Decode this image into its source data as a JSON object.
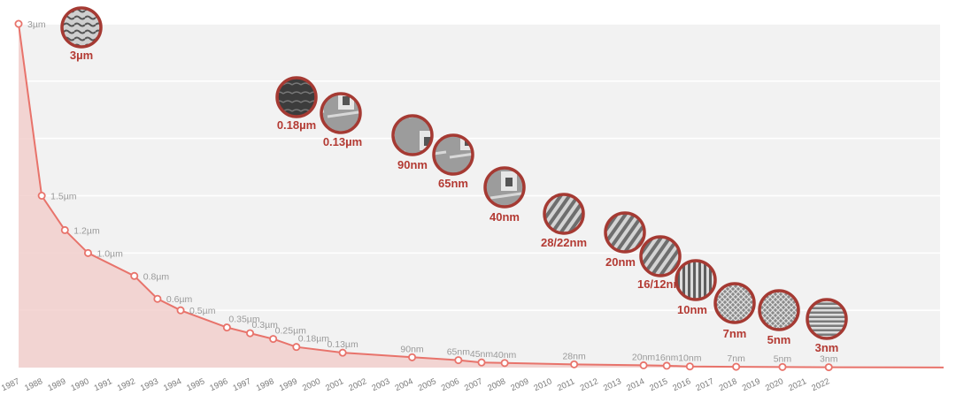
{
  "chart_data": {
    "type": "area",
    "x_tick_labels": [
      "1987",
      "1988",
      "1989",
      "1990",
      "1991",
      "1992",
      "1993",
      "1994",
      "1995",
      "1996",
      "1997",
      "1998",
      "1999",
      "2000",
      "2001",
      "2002",
      "2003",
      "2004",
      "2005",
      "2006",
      "2007",
      "2008",
      "2009",
      "2010",
      "2011",
      "2012",
      "2013",
      "2014",
      "2015",
      "2016",
      "2017",
      "2018",
      "2019",
      "2020",
      "2021",
      "2022"
    ],
    "unit": "nm",
    "ylim": [
      0,
      3000
    ],
    "grid": true,
    "points": [
      {
        "year": 1987,
        "value": 3000,
        "label": "3µm"
      },
      {
        "year": 1988,
        "value": 1500,
        "label": "1.5µm"
      },
      {
        "year": 1989,
        "value": 1200,
        "label": "1.2µm"
      },
      {
        "year": 1990,
        "value": 1000,
        "label": "1.0µm"
      },
      {
        "year": 1992,
        "value": 800,
        "label": "0.8µm"
      },
      {
        "year": 1993,
        "value": 600,
        "label": "0.6µm"
      },
      {
        "year": 1994,
        "value": 500,
        "label": "0.5µm"
      },
      {
        "year": 1996,
        "value": 350,
        "label": "0.35µm"
      },
      {
        "year": 1997,
        "value": 300,
        "label": "0.3µm"
      },
      {
        "year": 1998,
        "value": 250,
        "label": "0.25µm"
      },
      {
        "year": 1999,
        "value": 180,
        "label": "0.18µm"
      },
      {
        "year": 2001,
        "value": 130,
        "label": "0.13µm"
      },
      {
        "year": 2004,
        "value": 90,
        "label": "90nm"
      },
      {
        "year": 2006,
        "value": 65,
        "label": "65nm"
      },
      {
        "year": 2007,
        "value": 45,
        "label": "45nm"
      },
      {
        "year": 2008,
        "value": 40,
        "label": "40nm"
      },
      {
        "year": 2011,
        "value": 28,
        "label": "28nm"
      },
      {
        "year": 2014,
        "value": 20,
        "label": "20nm"
      },
      {
        "year": 2015,
        "value": 16,
        "label": "16nm"
      },
      {
        "year": 2016,
        "value": 10,
        "label": "10nm"
      },
      {
        "year": 2018,
        "value": 7,
        "label": "7nm"
      },
      {
        "year": 2020,
        "value": 5,
        "label": "5nm"
      },
      {
        "year": 2022,
        "value": 3,
        "label": "3nm"
      }
    ],
    "badges": [
      {
        "label": "3µm",
        "pattern": "cross-section"
      },
      {
        "label": "0.18µm",
        "pattern": "dark-trench"
      },
      {
        "label": "0.13µm",
        "pattern": "planar-gate"
      },
      {
        "label": "90nm",
        "pattern": "planar-gate"
      },
      {
        "label": "65nm",
        "pattern": "planar-gate"
      },
      {
        "label": "40nm",
        "pattern": "planar-gate"
      },
      {
        "label": "28/22nm",
        "pattern": "diagonal-fins"
      },
      {
        "label": "20nm",
        "pattern": "diagonal-fins"
      },
      {
        "label": "16/12nm",
        "pattern": "diagonal-fins"
      },
      {
        "label": "10nm",
        "pattern": "vertical-fins"
      },
      {
        "label": "7nm",
        "pattern": "mesh"
      },
      {
        "label": "5nm",
        "pattern": "mesh"
      },
      {
        "label": "3nm",
        "pattern": "horizontal-fins"
      }
    ],
    "colors": {
      "line": "#e8736b",
      "area": "#f2cfcd",
      "plot_bg": "#f2f2f2",
      "grid": "#ffffff",
      "point_label": "#9a9a9a",
      "badge_ring": "#a53a33",
      "badge_label": "#b33a33"
    }
  }
}
